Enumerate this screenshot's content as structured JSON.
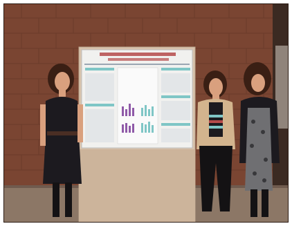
{
  "photo": {
    "scene": "three-women-with-research-poster",
    "colors": {
      "wall": "#7a4532",
      "wall_dark": "#5e3426",
      "floor": "#8c7766",
      "board": "#d8c3ad",
      "poster": "#f1f1ef",
      "poster_title": "#b54a4a",
      "accent_teal": "#7fc6c6",
      "accent_purple": "#8f5aa8",
      "dress": "#1c1a1f",
      "cardigan": "#d3b48e",
      "skin": "#d9a07e",
      "hair": "#3a1f14"
    }
  }
}
